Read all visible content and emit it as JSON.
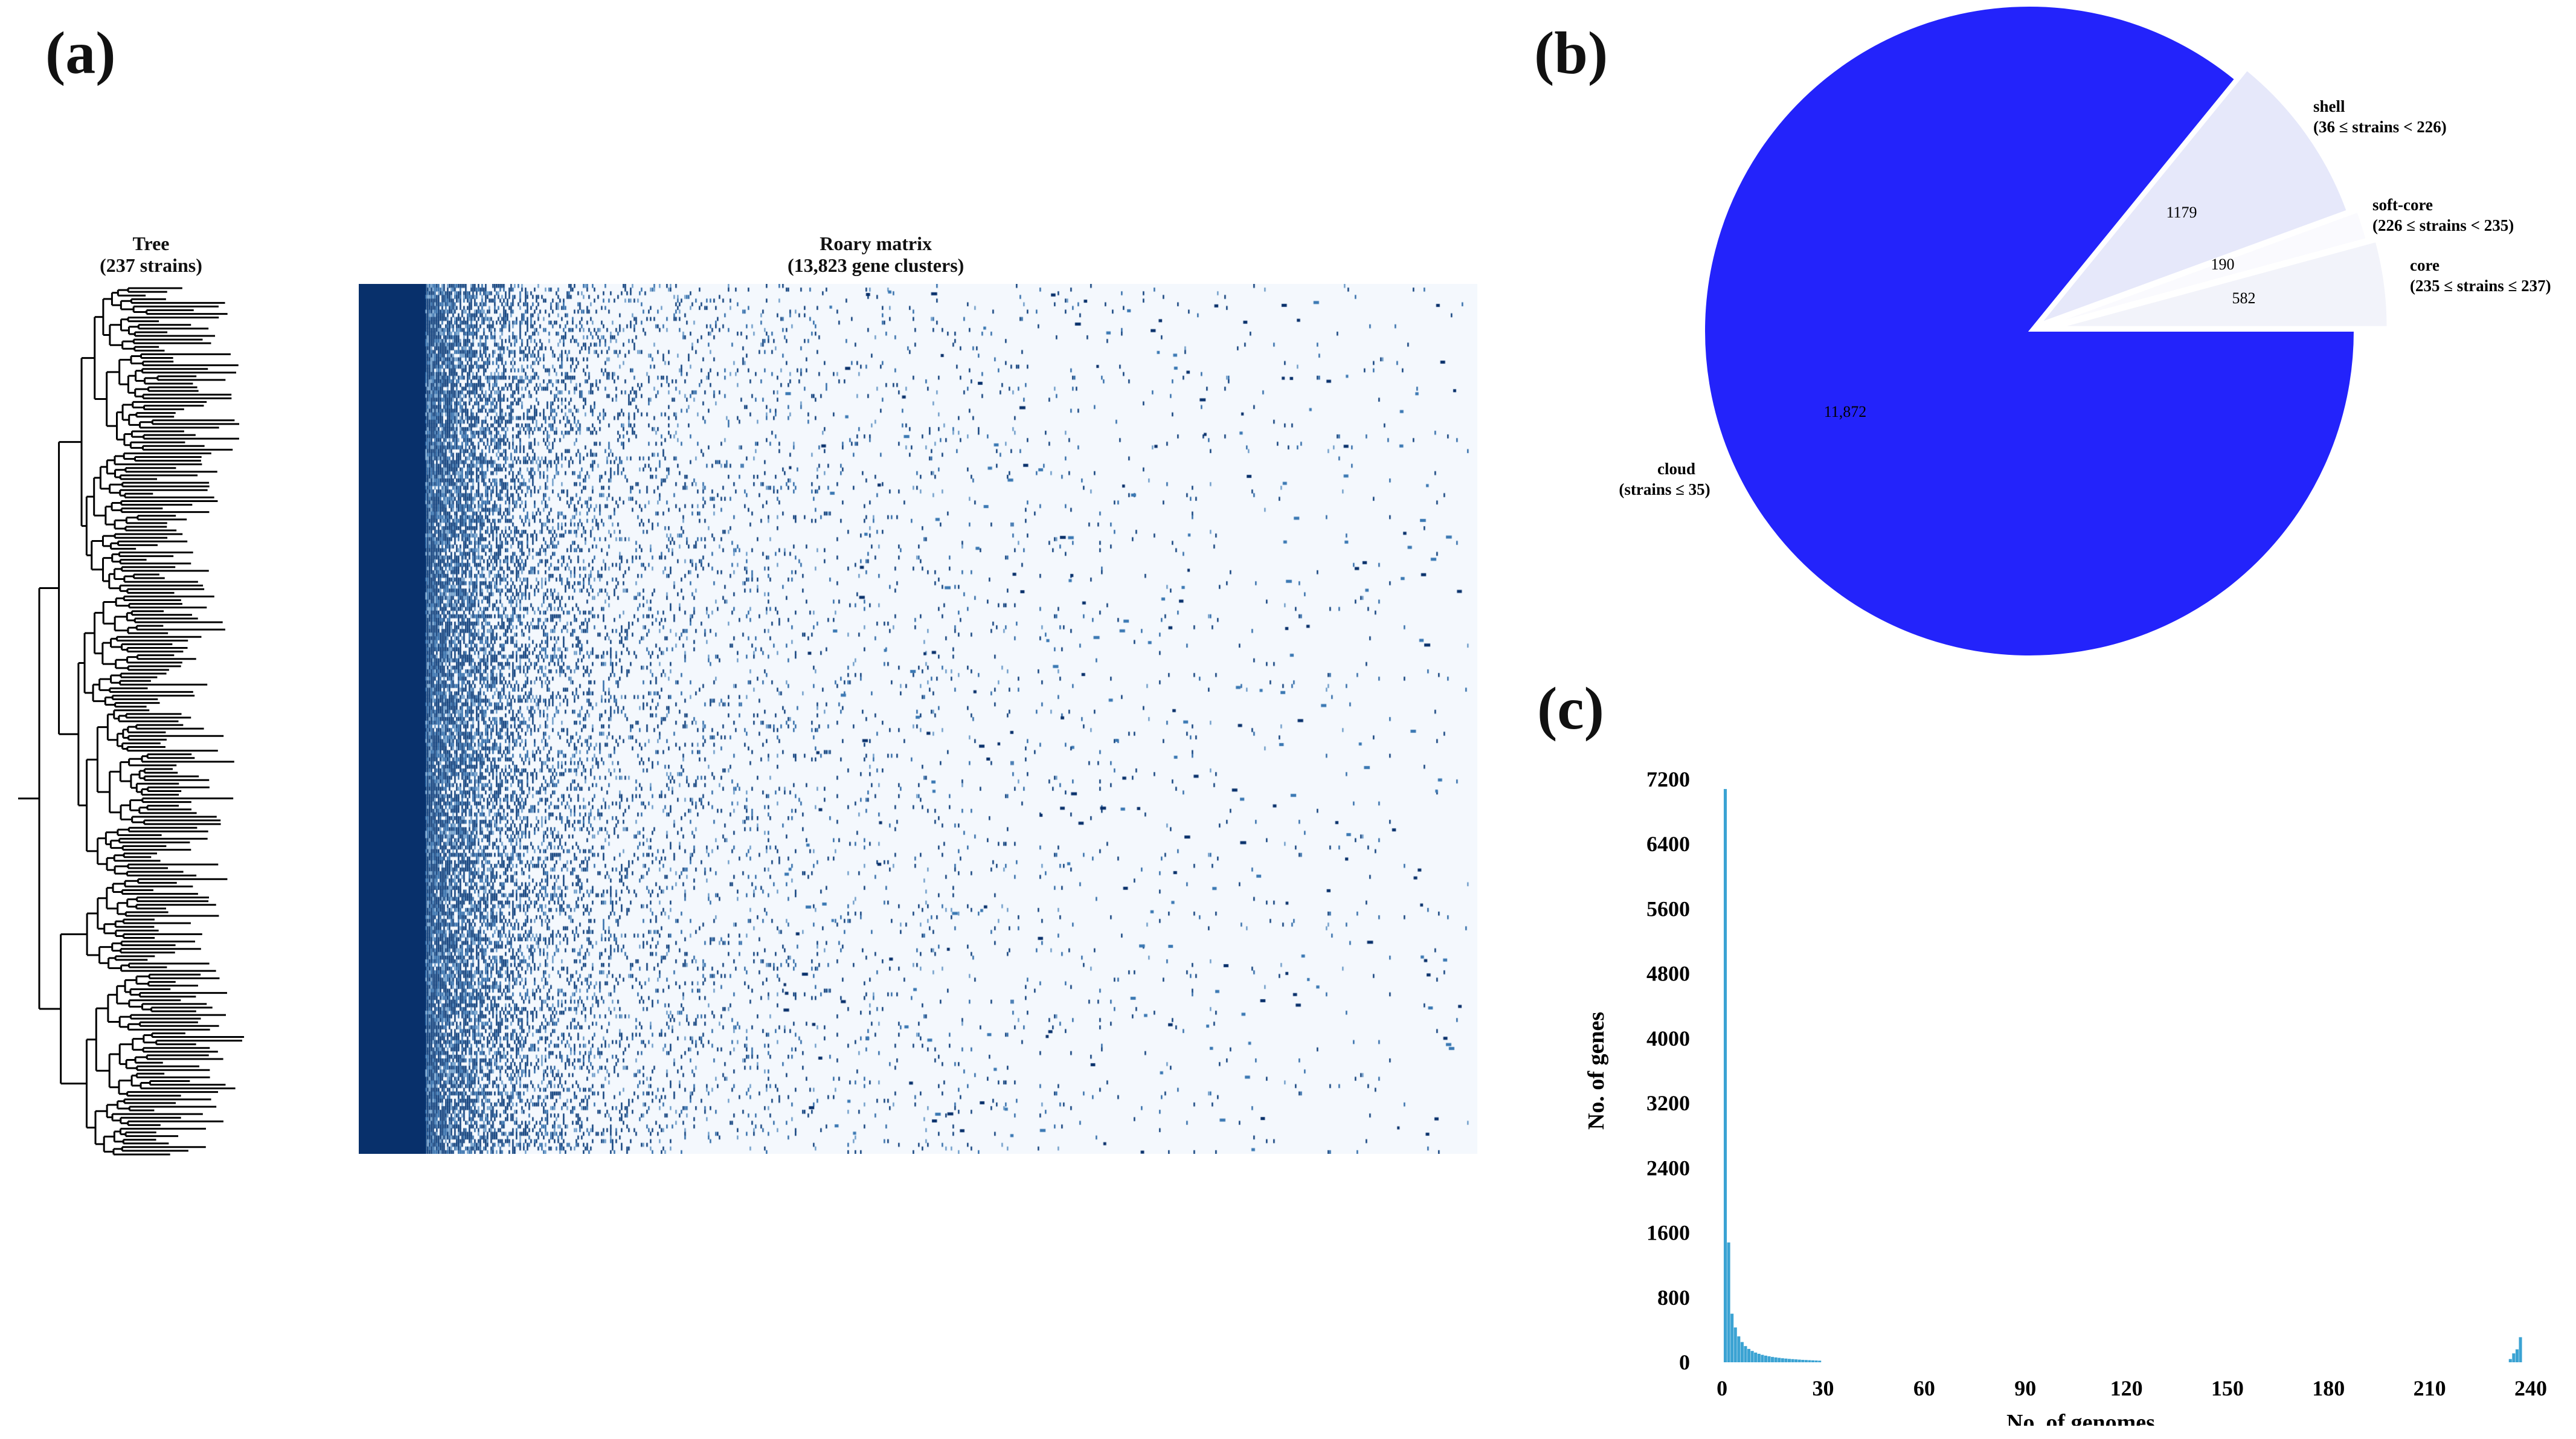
{
  "panels": {
    "a": "(a)",
    "b": "(b)",
    "c": "(c)"
  },
  "tree": {
    "title": "Tree",
    "subtitle": "(237 strains)"
  },
  "matrix": {
    "title": "Roary matrix",
    "subtitle": "(13,823 gene clusters)"
  },
  "colors": {
    "matrix_dark": "#08306b",
    "matrix_light": "#f4f8fd",
    "cloud": "#2323fb",
    "shell": "#e6e8fa",
    "softcore": "#fafafe",
    "core": "#f2f3fa",
    "hist": "#3ba3d3"
  },
  "chart_data": [
    {
      "type": "pie",
      "slices": [
        {
          "name": "cloud",
          "range": "(strains ≤ 35)",
          "value": 11872,
          "value_label": "11,872",
          "color": "#2323fb"
        },
        {
          "name": "shell",
          "range": "(36 ≤ strains < 226)",
          "value": 1179,
          "value_label": "1179",
          "color": "#e6e8fa"
        },
        {
          "name": "soft-core",
          "range": "(226 ≤ strains < 235)",
          "value": 190,
          "value_label": "190",
          "color": "#fafafe"
        },
        {
          "name": "core",
          "range": "(235 ≤ strains ≤ 237)",
          "value": 582,
          "value_label": "582",
          "color": "#f2f3fa"
        }
      ]
    },
    {
      "type": "bar",
      "xlabel": "No. of genomes",
      "ylabel": "No. of genes",
      "xlim": [
        -2,
        240
      ],
      "ylim": [
        0,
        7200
      ],
      "xticks": [
        0,
        30,
        60,
        90,
        120,
        150,
        180,
        210,
        240
      ],
      "yticks": [
        0,
        800,
        1600,
        2400,
        3200,
        4000,
        4800,
        5600,
        6400,
        7200
      ],
      "bins": [
        {
          "x": 1,
          "y": 7080
        },
        {
          "x": 2,
          "y": 1480
        },
        {
          "x": 3,
          "y": 600
        },
        {
          "x": 4,
          "y": 430
        },
        {
          "x": 5,
          "y": 320
        },
        {
          "x": 6,
          "y": 250
        },
        {
          "x": 7,
          "y": 200
        },
        {
          "x": 8,
          "y": 165
        },
        {
          "x": 9,
          "y": 140
        },
        {
          "x": 10,
          "y": 120
        },
        {
          "x": 11,
          "y": 105
        },
        {
          "x": 12,
          "y": 92
        },
        {
          "x": 13,
          "y": 82
        },
        {
          "x": 14,
          "y": 74
        },
        {
          "x": 15,
          "y": 66
        },
        {
          "x": 16,
          "y": 60
        },
        {
          "x": 17,
          "y": 55
        },
        {
          "x": 18,
          "y": 50
        },
        {
          "x": 19,
          "y": 46
        },
        {
          "x": 20,
          "y": 42
        },
        {
          "x": 21,
          "y": 39
        },
        {
          "x": 22,
          "y": 36
        },
        {
          "x": 23,
          "y": 33
        },
        {
          "x": 24,
          "y": 30
        },
        {
          "x": 25,
          "y": 28
        },
        {
          "x": 26,
          "y": 26
        },
        {
          "x": 27,
          "y": 24
        },
        {
          "x": 28,
          "y": 22
        },
        {
          "x": 29,
          "y": 20
        },
        {
          "x": 234,
          "y": 40
        },
        {
          "x": 235,
          "y": 110
        },
        {
          "x": 236,
          "y": 160
        },
        {
          "x": 237,
          "y": 310
        }
      ]
    }
  ]
}
